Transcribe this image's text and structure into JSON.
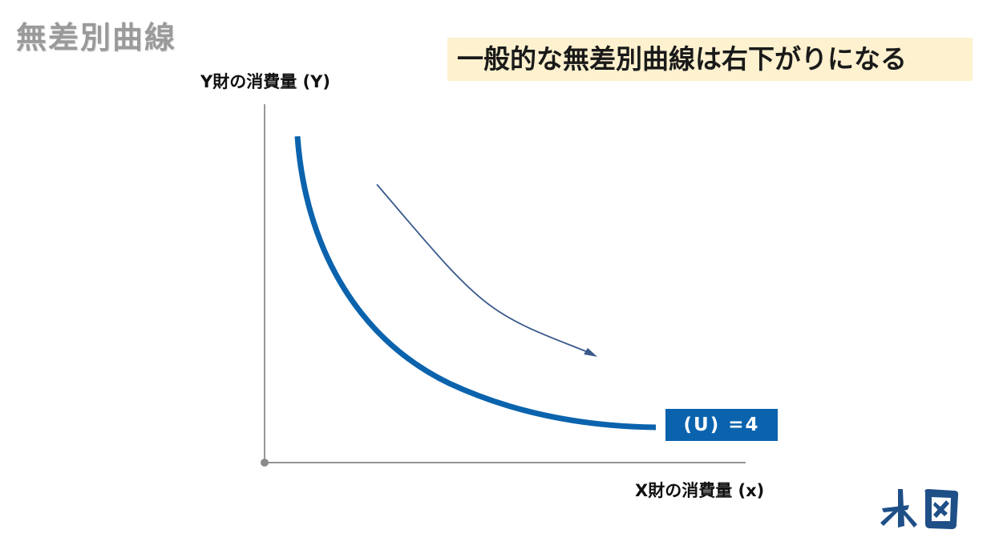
{
  "slide": {
    "title": "無差別曲線",
    "headline": "一般的な無差別曲線は右下がりになる"
  },
  "axes": {
    "y_label": "Y財の消費量 (Y)",
    "x_label": "X財の消費量 (x)"
  },
  "curve": {
    "label": "(U) =4",
    "color": "#0b63ad"
  },
  "arrow": {
    "color": "#3a5a8c"
  },
  "logo": {
    "icon": "brand-logo-icon",
    "color": "#1f4f87"
  }
}
